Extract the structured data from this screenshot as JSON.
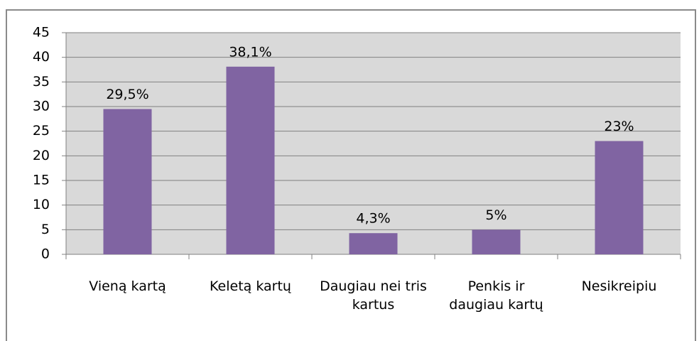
{
  "chart_data": {
    "type": "bar",
    "categories": [
      "Vieną kartą",
      "Keletą kartų",
      "Daugiau nei tris\nkartus",
      "Penkis ir\ndaugiau kartų",
      "Nesikreipiu"
    ],
    "values": [
      29.5,
      38.1,
      4.3,
      5,
      23
    ],
    "value_labels": [
      "29,5%",
      "38,1%",
      "4,3%",
      "5%",
      "23%"
    ],
    "color": "#8064a2",
    "ylim": [
      0,
      45
    ],
    "yticks": [
      0,
      5,
      10,
      15,
      20,
      25,
      30,
      35,
      40,
      45
    ],
    "grid": true
  }
}
